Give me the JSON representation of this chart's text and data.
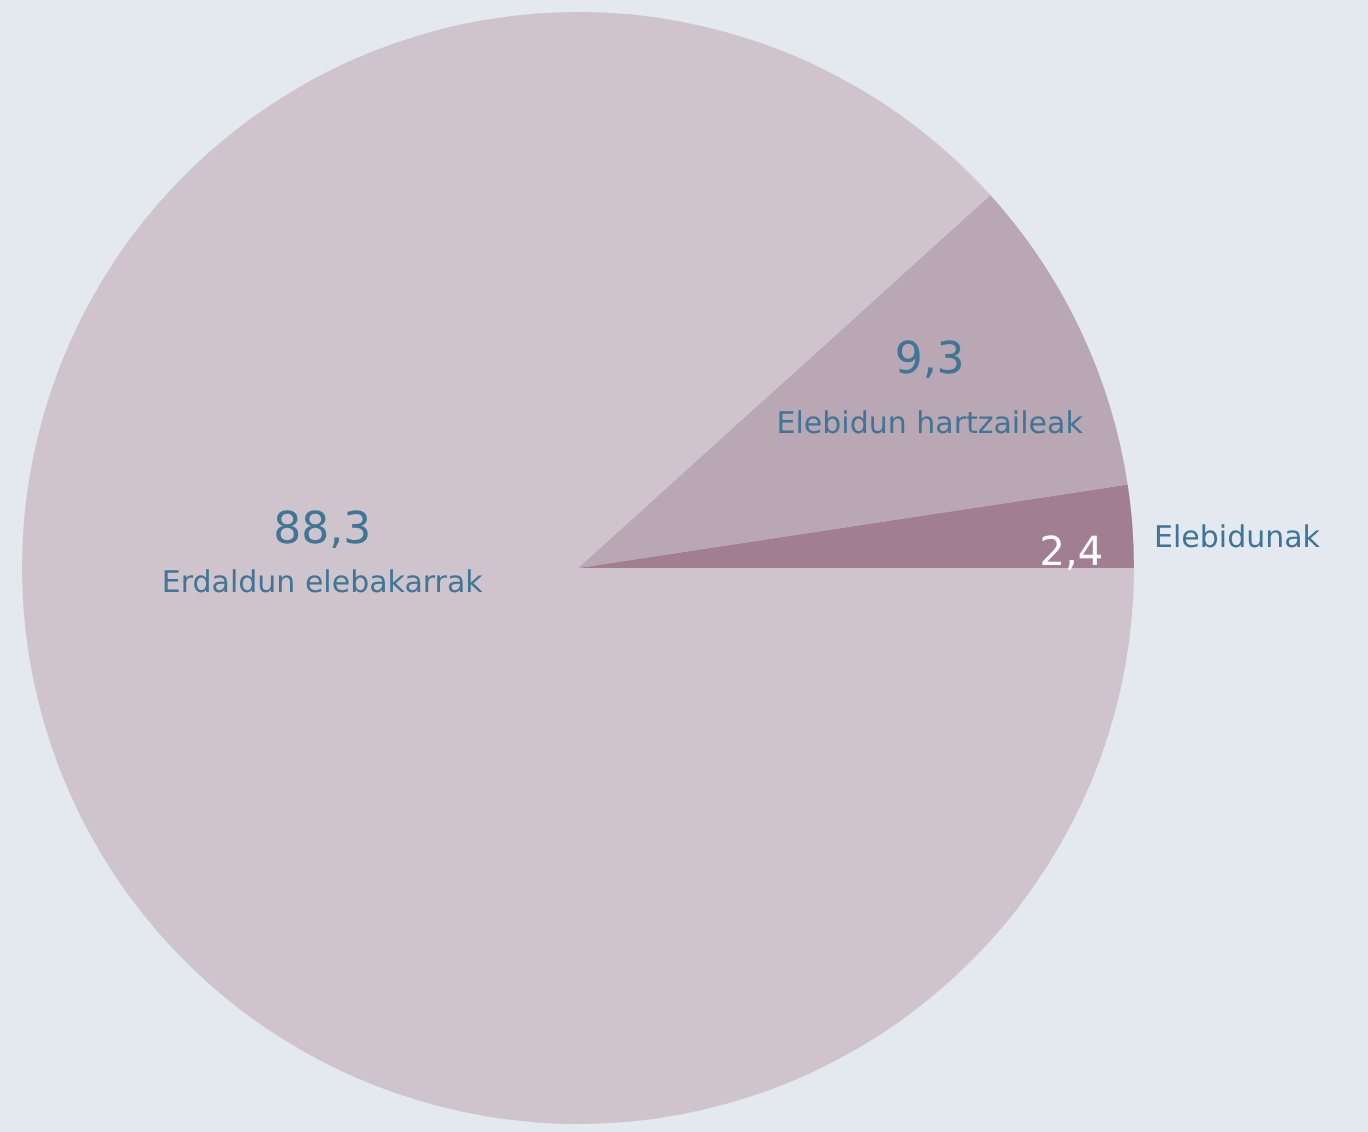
{
  "chart_data": {
    "type": "pie",
    "categories": [
      "Erdaldun elebakarrak",
      "Elebidun hartzaileak",
      "Elebidunak"
    ],
    "values": [
      88.3,
      9.3,
      2.4
    ],
    "value_labels": [
      "88,3",
      "9,3",
      "2,4"
    ],
    "colors": [
      "#cfc4cb",
      "#b9a7b4",
      "#a17f91"
    ],
    "legend": false
  }
}
